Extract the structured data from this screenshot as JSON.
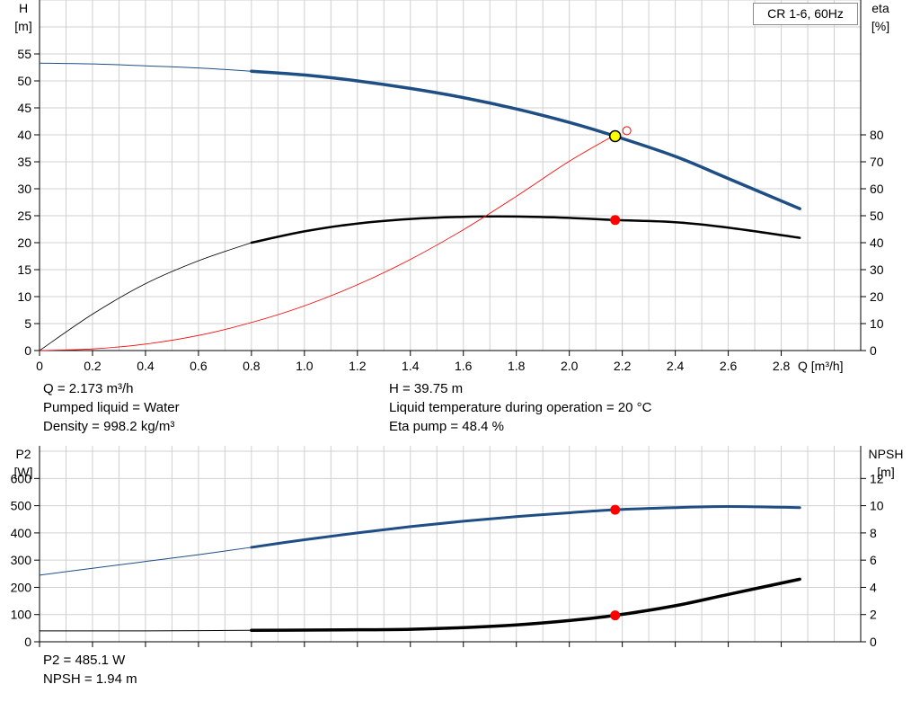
{
  "curve_title": "CR 1-6, 60Hz",
  "colors": {
    "head_curve": "#1f4e85",
    "p2_curve": "#1f4e85",
    "black_curve": "#000000",
    "eta_curve": "#ff0000",
    "marker": "#ff0000",
    "operating_point_fill": "#ffff00",
    "grid": "#d0d0d0"
  },
  "top_info": {
    "q": "Q = 2.173 m³/h",
    "liquid": "Pumped liquid = Water",
    "density": "Density = 998.2 kg/m³",
    "h": "H = 39.75 m",
    "temp": "Liquid temperature during operation = 20 °C",
    "eta": "Eta pump = 48.4 %"
  },
  "bottom_info": {
    "p2": "P2 = 485.1 W",
    "npsh": "NPSH = 1.94 m"
  },
  "chart_data": [
    {
      "type": "line",
      "x_axis": {
        "label": "Q [m³/h]",
        "range": [
          0,
          3.1
        ],
        "ticks": [
          0,
          0.2,
          0.4,
          0.6,
          0.8,
          1.0,
          1.2,
          1.4,
          1.6,
          1.8,
          2.0,
          2.2,
          2.4,
          2.6,
          2.8
        ],
        "tick_labels": [
          "0",
          "0.2",
          "0.4",
          "0.6",
          "0.8",
          "1.0",
          "1.2",
          "1.4",
          "1.6",
          "1.8",
          "2.0",
          "2.2",
          "2.4",
          "2.6",
          "2.8"
        ]
      },
      "y_left": {
        "label_top": "H",
        "label_unit": "[m]",
        "range": [
          0,
          65
        ],
        "ticks": [
          0,
          5,
          10,
          15,
          20,
          25,
          30,
          35,
          40,
          45,
          50,
          55
        ],
        "tick_labels": [
          "0",
          "5",
          "10",
          "15",
          "20",
          "25",
          "30",
          "35",
          "40",
          "45",
          "50",
          "55"
        ]
      },
      "y_right": {
        "label_top": "eta",
        "label_unit": "[%]",
        "range": [
          0,
          130
        ],
        "ticks": [
          0,
          10,
          20,
          30,
          40,
          50,
          60,
          70,
          80
        ],
        "tick_labels": [
          "0",
          "10",
          "20",
          "30",
          "40",
          "50",
          "60",
          "70",
          "80"
        ]
      },
      "grid": true,
      "series": [
        {
          "key": "head",
          "axis": "left",
          "valid_from": 0.8,
          "x": [
            0,
            0.2,
            0.4,
            0.6,
            0.8,
            1.0,
            1.2,
            1.4,
            1.6,
            1.8,
            2.0,
            2.173,
            2.4,
            2.6,
            2.87
          ],
          "y": [
            53.3,
            53.15,
            52.8,
            52.4,
            51.8,
            51.1,
            50.0,
            48.6,
            46.9,
            44.8,
            42.3,
            39.75,
            36.0,
            31.9,
            26.3
          ]
        },
        {
          "key": "eta",
          "axis": "right",
          "valid_from": 0.8,
          "x": [
            0,
            0.2,
            0.4,
            0.6,
            0.8,
            1.0,
            1.2,
            1.4,
            1.6,
            1.8,
            2.0,
            2.173,
            2.4,
            2.6,
            2.87
          ],
          "y": [
            0,
            13.5,
            24.8,
            33.3,
            40.0,
            44.2,
            47.1,
            48.8,
            49.6,
            49.7,
            49.2,
            48.4,
            47.6,
            45.6,
            41.8
          ]
        },
        {
          "key": "eta_pump_red",
          "axis": "left",
          "valid_from": 0,
          "x": [
            0,
            0.2,
            0.4,
            0.6,
            0.8,
            1.0,
            1.2,
            1.4,
            1.6,
            1.8,
            2.0,
            2.173
          ],
          "y": [
            0,
            0.3,
            1.2,
            2.8,
            5.2,
            8.3,
            12.2,
            16.9,
            22.4,
            28.6,
            35.1,
            40.0
          ]
        }
      ],
      "markers": [
        {
          "type": "operating_point",
          "axis": "left",
          "x": 2.173,
          "y": 39.75
        },
        {
          "type": "open_circle",
          "axis": "left",
          "x": 2.2,
          "y": 40.6
        },
        {
          "type": "dot",
          "axis": "right",
          "x": 2.173,
          "y": 48.4
        }
      ]
    },
    {
      "type": "line",
      "x_axis": {
        "range": [
          0,
          3.1
        ],
        "ticks": [
          0,
          0.2,
          0.4,
          0.6,
          0.8,
          1.0,
          1.2,
          1.4,
          1.6,
          1.8,
          2.0,
          2.2,
          2.4,
          2.6,
          2.8
        ]
      },
      "y_left": {
        "label_top": "P2",
        "label_unit": "[W]",
        "range": [
          0,
          720
        ],
        "ticks": [
          0,
          100,
          200,
          300,
          400,
          500,
          600
        ],
        "tick_labels": [
          "0",
          "100",
          "200",
          "300",
          "400",
          "500",
          "600"
        ]
      },
      "y_right": {
        "label_top": "NPSH",
        "label_unit": "[m]",
        "range": [
          0,
          14.4
        ],
        "ticks": [
          0,
          2,
          4,
          6,
          8,
          10,
          12
        ],
        "tick_labels": [
          "0",
          "2",
          "4",
          "6",
          "8",
          "10",
          "12"
        ]
      },
      "grid": true,
      "series": [
        {
          "key": "p2",
          "axis": "left",
          "valid_from": 0.8,
          "x": [
            0,
            0.2,
            0.4,
            0.6,
            0.8,
            1.0,
            1.2,
            1.4,
            1.6,
            1.8,
            2.0,
            2.173,
            2.4,
            2.6,
            2.87
          ],
          "y": [
            245,
            270,
            295,
            320,
            347,
            375,
            400,
            423,
            443,
            460,
            474,
            485.1,
            493,
            497,
            493
          ]
        },
        {
          "key": "npsh",
          "axis": "right",
          "valid_from": 0.8,
          "x": [
            0,
            0.2,
            0.4,
            0.6,
            0.8,
            1.0,
            1.2,
            1.4,
            1.6,
            1.8,
            2.0,
            2.173,
            2.4,
            2.6,
            2.87
          ],
          "y": [
            0.8,
            0.8,
            0.8,
            0.82,
            0.84,
            0.86,
            0.88,
            0.92,
            1.04,
            1.24,
            1.56,
            1.94,
            2.65,
            3.48,
            4.6
          ]
        }
      ],
      "markers": [
        {
          "type": "dot",
          "axis": "left",
          "x": 2.173,
          "y": 485.1
        },
        {
          "type": "dot",
          "axis": "right",
          "x": 2.173,
          "y": 1.94
        }
      ]
    }
  ]
}
